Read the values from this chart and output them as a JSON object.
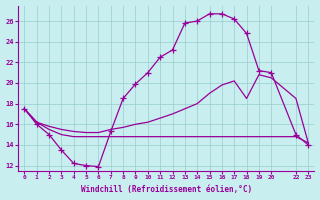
{
  "background_color": "#c8eef0",
  "grid_color": "#99cccc",
  "line_color": "#990099",
  "xlim": [
    -0.5,
    23.5
  ],
  "ylim": [
    11.5,
    27.5
  ],
  "xtick_pos": [
    0,
    1,
    2,
    3,
    4,
    5,
    6,
    7,
    8,
    9,
    10,
    11,
    12,
    13,
    14,
    15,
    16,
    17,
    18,
    19,
    20,
    22,
    23
  ],
  "xtick_labels": [
    "0",
    "1",
    "2",
    "3",
    "4",
    "5",
    "6",
    "7",
    "8",
    "9",
    "10",
    "11",
    "12",
    "13",
    "14",
    "15",
    "16",
    "17",
    "18",
    "19",
    "20",
    "22",
    "23"
  ],
  "yticks": [
    12,
    14,
    16,
    18,
    20,
    22,
    24,
    26
  ],
  "xlabel": "Windchill (Refroidissement éolien,°C)",
  "curve1_x": [
    0,
    1,
    2,
    3,
    4,
    5,
    6,
    7,
    8,
    9,
    10,
    11,
    12,
    13,
    14,
    15,
    16,
    17,
    18,
    19,
    20,
    22,
    23
  ],
  "curve1_y": [
    17.5,
    16.0,
    15.0,
    13.5,
    12.2,
    12.0,
    11.9,
    15.3,
    18.5,
    19.9,
    21.0,
    22.5,
    23.2,
    25.8,
    26.0,
    26.7,
    26.7,
    26.2,
    24.8,
    21.2,
    21.0,
    15.0,
    14.0
  ],
  "curve2_x": [
    0,
    1,
    2,
    3,
    4,
    5,
    6,
    7,
    8,
    9,
    10,
    11,
    12,
    13,
    14,
    15,
    16,
    17,
    18,
    19,
    20,
    22,
    23
  ],
  "curve2_y": [
    17.5,
    16.2,
    15.8,
    15.5,
    15.3,
    15.2,
    15.2,
    15.5,
    15.7,
    16.0,
    16.2,
    16.6,
    17.0,
    17.5,
    18.0,
    19.0,
    19.8,
    20.2,
    18.5,
    20.8,
    20.5,
    18.5,
    14.2
  ],
  "curve3_x": [
    0,
    1,
    2,
    3,
    4,
    5,
    6,
    7,
    8,
    9,
    10,
    11,
    12,
    13,
    14,
    15,
    16,
    17,
    18,
    19,
    20,
    22,
    23
  ],
  "curve3_y": [
    17.5,
    16.2,
    15.5,
    15.0,
    14.8,
    14.8,
    14.8,
    14.8,
    14.8,
    14.8,
    14.8,
    14.8,
    14.8,
    14.8,
    14.8,
    14.8,
    14.8,
    14.8,
    14.8,
    14.8,
    14.8,
    14.8,
    14.2
  ]
}
